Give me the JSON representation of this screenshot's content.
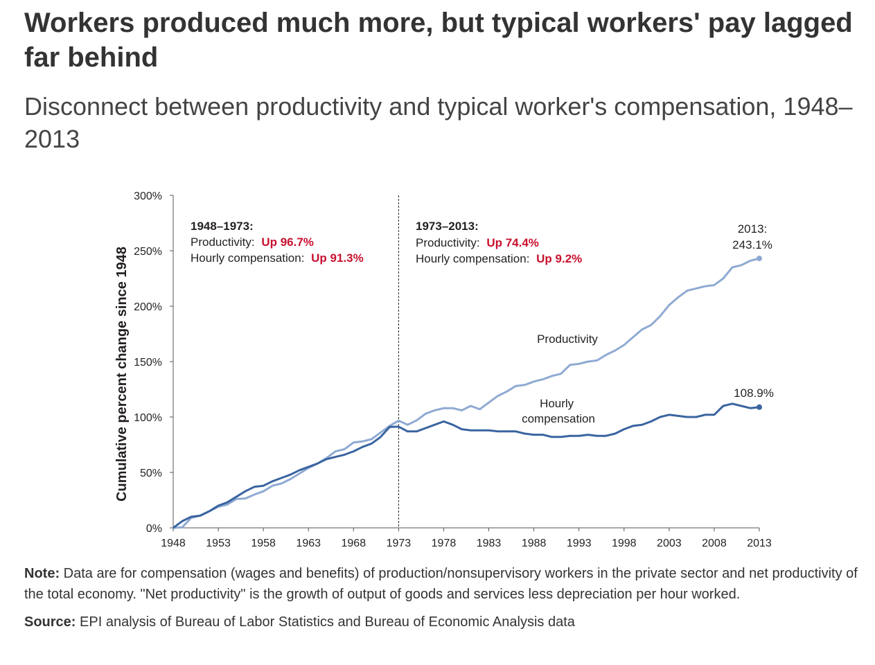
{
  "title": "Workers produced much more, but typical workers' pay lagged far behind",
  "subtitle": "Disconnect between productivity and typical worker's compensation, 1948–2013",
  "colors": {
    "productivity": "#8faad2",
    "compensation": "#3a64a0",
    "highlight": "#c8102e",
    "axis": "#555555"
  },
  "chart_data": {
    "type": "line",
    "ylabel": "Cumulative percent change since 1948",
    "xlabel": "",
    "xlim": [
      1948,
      2013
    ],
    "ylim": [
      0,
      300
    ],
    "x_ticks": [
      "1948",
      "1953",
      "1958",
      "1963",
      "1968",
      "1973",
      "1978",
      "1983",
      "1988",
      "1993",
      "1998",
      "2003",
      "2008",
      "2013"
    ],
    "y_ticks": [
      "0%",
      "50%",
      "100%",
      "150%",
      "200%",
      "250%",
      "300%"
    ],
    "x": [
      1948,
      1949,
      1950,
      1951,
      1952,
      1953,
      1954,
      1955,
      1956,
      1957,
      1958,
      1959,
      1960,
      1961,
      1962,
      1963,
      1964,
      1965,
      1966,
      1967,
      1968,
      1969,
      1970,
      1971,
      1972,
      1973,
      1974,
      1975,
      1976,
      1977,
      1978,
      1979,
      1980,
      1981,
      1982,
      1983,
      1984,
      1985,
      1986,
      1987,
      1988,
      1989,
      1990,
      1991,
      1992,
      1993,
      1994,
      1995,
      1996,
      1997,
      1998,
      1999,
      2000,
      2001,
      2002,
      2003,
      2004,
      2005,
      2006,
      2007,
      2008,
      2009,
      2010,
      2011,
      2012,
      2013
    ],
    "series": [
      {
        "name": "Productivity",
        "values": [
          0,
          0.5,
          9,
          11,
          15,
          19,
          21,
          26,
          26.5,
          30,
          33,
          38,
          40,
          44,
          49,
          54,
          58,
          63,
          69,
          71,
          77,
          78,
          80,
          86,
          92,
          96.7,
          93,
          97,
          103,
          106,
          108,
          108,
          106,
          110,
          107,
          113,
          119,
          123,
          128,
          129,
          132,
          134,
          137,
          139,
          147,
          148,
          150,
          151,
          156,
          160,
          165,
          172,
          179,
          183,
          191,
          201,
          208,
          214,
          216,
          218,
          219,
          225,
          235,
          237,
          241,
          243.1
        ]
      },
      {
        "name": "Hourly compensation",
        "values": [
          0,
          6,
          10,
          11,
          15,
          20,
          23,
          28,
          33,
          37,
          38,
          42,
          45,
          48,
          52,
          55,
          58,
          62,
          64,
          66,
          69,
          73,
          76,
          82,
          91,
          91.3,
          87,
          87,
          90,
          93,
          96,
          93,
          89,
          88,
          88,
          88,
          87,
          87,
          87,
          85,
          84,
          84,
          82,
          82,
          83,
          83,
          84,
          83,
          83,
          85,
          89,
          92,
          93,
          96,
          100,
          102,
          101,
          100,
          100,
          102,
          102,
          110,
          112,
          110,
          108,
          108.9
        ]
      }
    ],
    "line_labels": {
      "productivity": "Productivity",
      "compensation": "Hourly compensation"
    },
    "end_labels": {
      "productivity_year": "2013:",
      "productivity_value": "243.1%",
      "compensation_value": "108.9%"
    },
    "divider_year": 1973,
    "annotations": [
      {
        "period": "1948–1973:",
        "prod_label": "Productivity:",
        "prod_change": "Up 96.7%",
        "comp_label": "Hourly compensation:",
        "comp_change": "Up 91.3%"
      },
      {
        "period": "1973–2013:",
        "prod_label": "Productivity:",
        "prod_change": "Up 74.4%",
        "comp_label": "Hourly compensation:",
        "comp_change": "Up 9.2%"
      }
    ]
  },
  "note": {
    "label": "Note:",
    "text": " Data are for compensation (wages and benefits) of production/nonsupervisory workers in the private sector and net productivity of the total economy. \"Net productivity\" is the growth of output of goods and services less de­preciation per hour worked."
  },
  "source": {
    "label": "Source:",
    "text": " EPI analysis of Bureau of Labor Statistics and Bureau of Economic Analysis data"
  }
}
